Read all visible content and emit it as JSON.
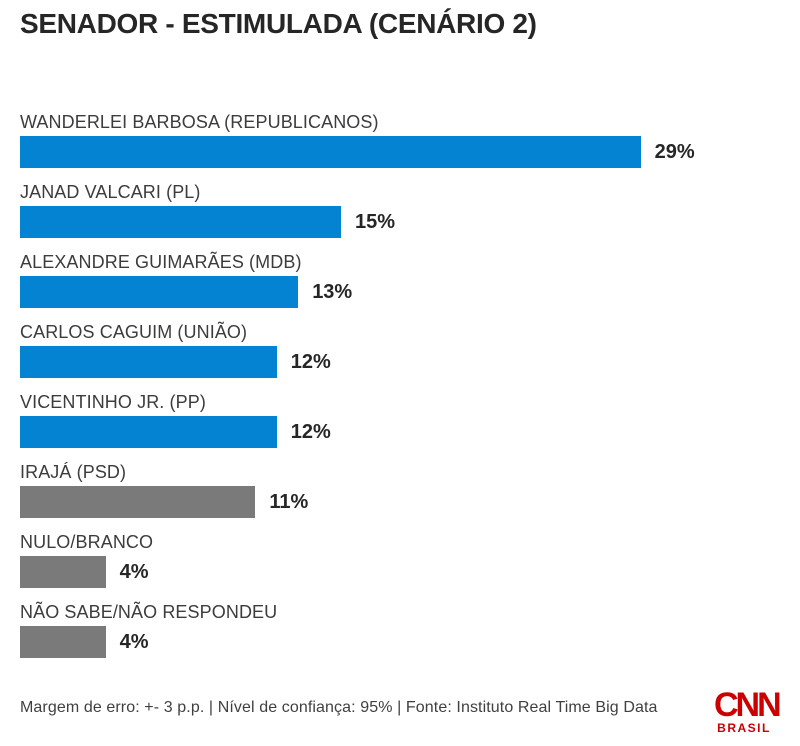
{
  "chart_data": {
    "type": "bar",
    "orientation": "horizontal",
    "title": "SENADOR - ESTIMULADA (CENÁRIO 2)",
    "categories": [
      "WANDERLEI BARBOSA (REPUBLICANOS)",
      "JANAD VALCARI (PL)",
      "ALEXANDRE GUIMARÃES (MDB)",
      "CARLOS CAGUIM (UNIÃO)",
      "VICENTINHO JR. (PP)",
      "IRAJÁ (PSD)",
      "NULO/BRANCO",
      "NÃO SABE/NÃO RESPONDEU"
    ],
    "values": [
      29,
      15,
      13,
      12,
      12,
      11,
      4,
      4
    ],
    "value_labels": [
      "29%",
      "15%",
      "13%",
      "12%",
      "12%",
      "11%",
      "4%",
      "4%"
    ],
    "unit": "%",
    "xlim": [
      0,
      30
    ],
    "grid": false,
    "legend": false,
    "bar_colors": [
      "blue",
      "blue",
      "blue",
      "blue",
      "blue",
      "gray",
      "gray",
      "gray"
    ],
    "palette": {
      "blue": "#0583d3",
      "gray": "#7a7a7a"
    }
  },
  "footer": {
    "text": "Margem de erro: +- 3 p.p. | Nível de confiança: 95% | Fonte: Instituto Real Time Big Data"
  },
  "logo": {
    "primary": "CNN",
    "secondary": "BRASIL",
    "color": "#cc0000"
  }
}
